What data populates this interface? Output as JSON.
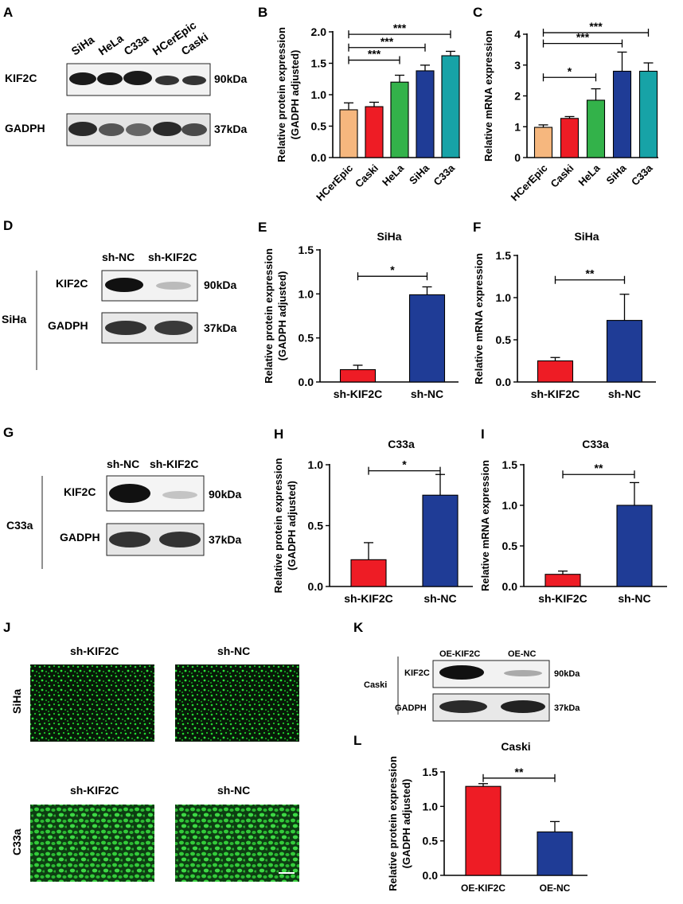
{
  "panels": {
    "A": {
      "letter": "A",
      "lanes": [
        "SiHa",
        "HeLa",
        "C33a",
        "HCerEpic",
        "Caski"
      ],
      "rows": [
        {
          "name": "KIF2C",
          "size": "90kDa"
        },
        {
          "name": "GADPH",
          "size": "37kDa"
        }
      ]
    },
    "D": {
      "letter": "D",
      "cell": "SiHa",
      "lanes": [
        "sh-NC",
        "sh-KIF2C"
      ],
      "rows": [
        {
          "name": "KIF2C",
          "size": "90kDa"
        },
        {
          "name": "GADPH",
          "size": "37kDa"
        }
      ]
    },
    "G": {
      "letter": "G",
      "cell": "C33a",
      "lanes": [
        "sh-NC",
        "sh-KIF2C"
      ],
      "rows": [
        {
          "name": "KIF2C",
          "size": "90kDa"
        },
        {
          "name": "GADPH",
          "size": "37kDa"
        }
      ]
    },
    "J": {
      "letter": "J",
      "rows": [
        {
          "cell": "SiHa",
          "cols": [
            "sh-KIF2C",
            "sh-NC"
          ]
        },
        {
          "cell": "C33a",
          "cols": [
            "sh-KIF2C",
            "sh-NC"
          ]
        }
      ]
    },
    "K": {
      "letter": "K",
      "cell": "Caski",
      "lanes": [
        "OE-KIF2C",
        "OE-NC"
      ],
      "rows": [
        {
          "name": "KIF2C",
          "size": "90kDa"
        },
        {
          "name": "GADPH",
          "size": "37kDa"
        }
      ]
    }
  },
  "chart_data": [
    {
      "id": "B",
      "letter": "B",
      "type": "bar",
      "title": "",
      "ylabel": [
        "Relative protein expression",
        "(GADPH adjusted)"
      ],
      "ylim": [
        0,
        2.0
      ],
      "ticks": [
        "0.0",
        "0.5",
        "1.0",
        "1.5",
        "2.0"
      ],
      "tick_values": [
        0,
        0.5,
        1.0,
        1.5,
        2.0
      ],
      "categories": [
        "HCerEpic",
        "Caski",
        "HeLa",
        "SiHa",
        "C33a"
      ],
      "values": [
        0.76,
        0.81,
        1.2,
        1.38,
        1.62
      ],
      "errors": [
        0.11,
        0.07,
        0.11,
        0.09,
        0.07
      ],
      "colors": [
        "#f6b77e",
        "#ee1c25",
        "#33b24a",
        "#1f3c96",
        "#17a3a7"
      ],
      "significance": [
        {
          "from": 0,
          "to": 2,
          "y": 1.55,
          "label": "***"
        },
        {
          "from": 0,
          "to": 3,
          "y": 1.75,
          "label": "***"
        },
        {
          "from": 0,
          "to": 4,
          "y": 1.96,
          "label": "***"
        }
      ]
    },
    {
      "id": "C",
      "letter": "C",
      "type": "bar",
      "title": "",
      "ylabel": [
        "Relative mRNA expression"
      ],
      "ylim": [
        0,
        4
      ],
      "ticks": [
        "0",
        "1",
        "2",
        "3",
        "4"
      ],
      "tick_values": [
        0,
        1,
        2,
        3,
        4
      ],
      "categories": [
        "HCerEpic",
        "Caski",
        "HeLa",
        "SiHa",
        "C33a"
      ],
      "values": [
        0.98,
        1.27,
        1.86,
        2.8,
        2.8
      ],
      "errors": [
        0.08,
        0.06,
        0.37,
        0.62,
        0.27
      ],
      "colors": [
        "#f6b77e",
        "#ee1c25",
        "#33b24a",
        "#1f3c96",
        "#17a3a7"
      ],
      "significance": [
        {
          "from": 0,
          "to": 2,
          "y": 2.6,
          "label": "*"
        },
        {
          "from": 0,
          "to": 3,
          "y": 3.7,
          "label": "***"
        },
        {
          "from": 0,
          "to": 4,
          "y": 4.05,
          "label": "***"
        }
      ]
    },
    {
      "id": "E",
      "letter": "E",
      "type": "bar",
      "title": "SiHa",
      "ylabel": [
        "Relative protein expression",
        "(GADPH adjusted)"
      ],
      "ylim": [
        0,
        1.5
      ],
      "ticks": [
        "0.0",
        "0.5",
        "1.0",
        "1.5"
      ],
      "tick_values": [
        0,
        0.5,
        1.0,
        1.5
      ],
      "categories": [
        "sh-KIF2C",
        "sh-NC"
      ],
      "values": [
        0.14,
        0.99
      ],
      "errors": [
        0.05,
        0.09
      ],
      "colors": [
        "#ee1c25",
        "#1f3c96"
      ],
      "significance": [
        {
          "from": 0,
          "to": 1,
          "y": 1.2,
          "label": "*"
        }
      ]
    },
    {
      "id": "F",
      "letter": "F",
      "type": "bar",
      "title": "SiHa",
      "ylabel": [
        "Relative mRNA expression"
      ],
      "ylim": [
        0,
        1.5
      ],
      "ticks": [
        "0.0",
        "0.5",
        "1.0",
        "1.5"
      ],
      "tick_values": [
        0,
        0.5,
        1.0,
        1.5
      ],
      "categories": [
        "sh-KIF2C",
        "sh-NC"
      ],
      "values": [
        0.25,
        0.73
      ],
      "errors": [
        0.04,
        0.31
      ],
      "colors": [
        "#ee1c25",
        "#1f3c96"
      ],
      "significance": [
        {
          "from": 0,
          "to": 1,
          "y": 1.21,
          "label": "**"
        }
      ]
    },
    {
      "id": "H",
      "letter": "H",
      "type": "bar",
      "title": "C33a",
      "ylabel": [
        "Relative protein expression",
        "(GADPH adjusted)"
      ],
      "ylim": [
        0,
        1.0
      ],
      "ticks": [
        "0.0",
        "0.5",
        "1.0"
      ],
      "tick_values": [
        0,
        0.5,
        1.0
      ],
      "categories": [
        "sh-KIF2C",
        "sh-NC"
      ],
      "values": [
        0.22,
        0.75
      ],
      "errors": [
        0.14,
        0.17
      ],
      "colors": [
        "#ee1c25",
        "#1f3c96"
      ],
      "significance": [
        {
          "from": 0,
          "to": 1,
          "y": 0.95,
          "label": "*"
        }
      ]
    },
    {
      "id": "I",
      "letter": "I",
      "type": "bar",
      "title": "C33a",
      "ylabel": [
        "Relative mRNA expression"
      ],
      "ylim": [
        0,
        1.5
      ],
      "ticks": [
        "0.0",
        "0.5",
        "1.0",
        "1.5"
      ],
      "tick_values": [
        0,
        0.5,
        1.0,
        1.5
      ],
      "categories": [
        "sh-KIF2C",
        "sh-NC"
      ],
      "values": [
        0.15,
        1.0
      ],
      "errors": [
        0.04,
        0.28
      ],
      "colors": [
        "#ee1c25",
        "#1f3c96"
      ],
      "significance": [
        {
          "from": 0,
          "to": 1,
          "y": 1.38,
          "label": "**"
        }
      ]
    },
    {
      "id": "L",
      "letter": "L",
      "type": "bar",
      "title": "Caski",
      "ylabel": [
        "Relative protein expression",
        "(GADPH adjusted)"
      ],
      "ylim": [
        0,
        1.5
      ],
      "ticks": [
        "0.0",
        "0.5",
        "1.0",
        "1.5"
      ],
      "tick_values": [
        0,
        0.5,
        1.0,
        1.5
      ],
      "categories": [
        "OE-KIF2C",
        "OE-NC"
      ],
      "values": [
        1.29,
        0.63
      ],
      "errors": [
        0.04,
        0.15
      ],
      "colors": [
        "#ee1c25",
        "#1f3c96"
      ],
      "significance": [
        {
          "from": 0,
          "to": 1,
          "y": 1.41,
          "label": "**"
        }
      ]
    }
  ]
}
